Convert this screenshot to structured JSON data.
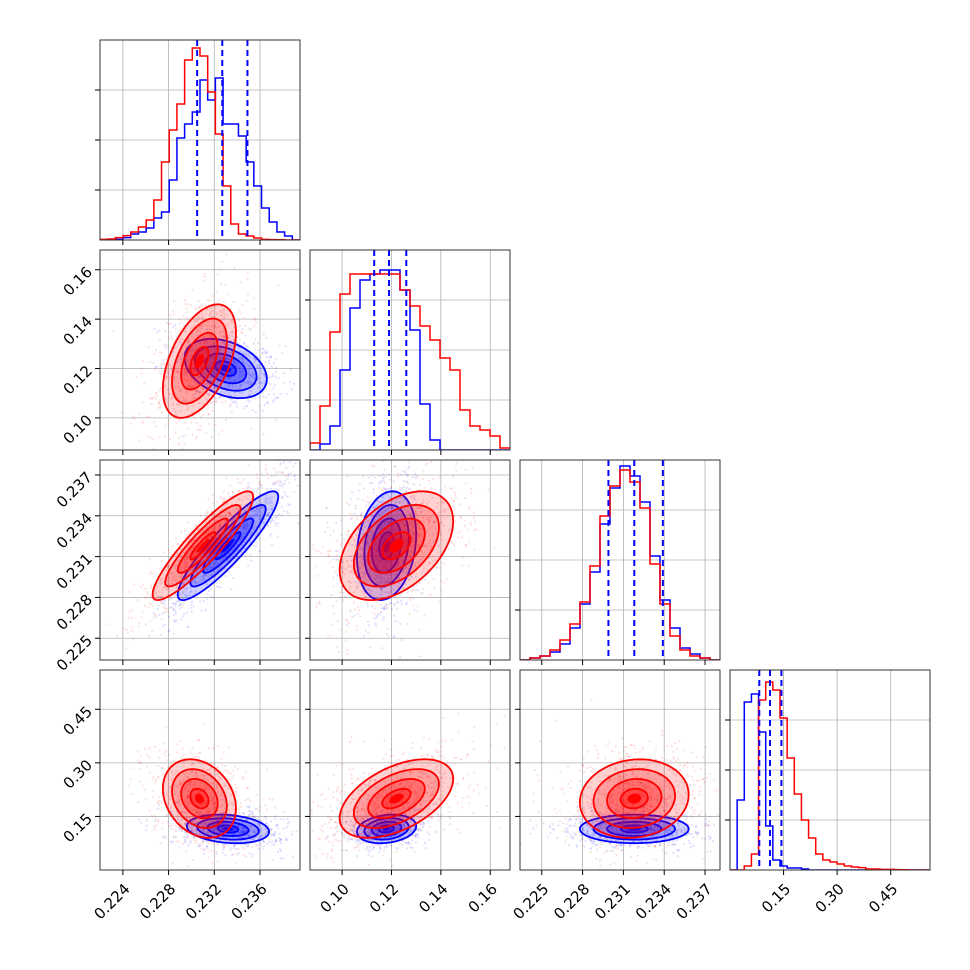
{
  "chart_data": {
    "type": "corner",
    "colors": {
      "red": "#ff0000",
      "blue": "#0000ff"
    },
    "parameters": [
      {
        "range": [
          0.222,
          0.2395
        ],
        "ticks": [
          0.224,
          0.228,
          0.232,
          0.236
        ],
        "tick_labels": [
          "0.224",
          "0.228",
          "0.232",
          "0.236"
        ]
      },
      {
        "range": [
          0.087,
          0.168
        ],
        "ticks": [
          0.1,
          0.12,
          0.14,
          0.16
        ],
        "tick_labels": [
          "0.10",
          "0.12",
          "0.14",
          "0.16"
        ]
      },
      {
        "range": [
          0.2234,
          0.2381
        ],
        "ticks": [
          0.225,
          0.228,
          0.231,
          0.234,
          0.237
        ],
        "tick_labels": [
          "0.225",
          "0.228",
          "0.231",
          "0.234",
          "0.237"
        ]
      },
      {
        "range": [
          0.0,
          0.56
        ],
        "ticks": [
          0.15,
          0.3,
          0.45
        ],
        "tick_labels": [
          "0.15",
          "0.30",
          "0.45"
        ]
      }
    ],
    "quantiles_blue": [
      [
        0.2305,
        0.2327,
        0.2349
      ],
      [
        0.113,
        0.119,
        0.126
      ],
      [
        0.2299,
        0.2318,
        0.2339
      ],
      [
        0.082,
        0.112,
        0.144
      ]
    ],
    "histograms": [
      {
        "bins": [
          0.222,
          0.2395,
          26
        ],
        "red": [
          0.003,
          0.005,
          0.012,
          0.022,
          0.04,
          0.065,
          0.1,
          0.2,
          0.39,
          0.55,
          0.68,
          0.9,
          0.96,
          0.92,
          0.74,
          0.53,
          0.27,
          0.08,
          0.03,
          0.02,
          0.01,
          0.003,
          0.002,
          0.001,
          0.0,
          0.0
        ],
        "blue": [
          0.0,
          0.0,
          0.003,
          0.012,
          0.03,
          0.04,
          0.06,
          0.11,
          0.14,
          0.3,
          0.51,
          0.58,
          0.64,
          0.8,
          0.7,
          0.81,
          0.58,
          0.58,
          0.52,
          0.39,
          0.27,
          0.16,
          0.09,
          0.04,
          0.02,
          0.0
        ]
      },
      {
        "bins": [
          0.087,
          0.168,
          20
        ],
        "red": [
          0.035,
          0.22,
          0.59,
          0.78,
          0.88,
          0.88,
          0.88,
          0.88,
          0.88,
          0.8,
          0.72,
          0.62,
          0.55,
          0.46,
          0.4,
          0.2,
          0.12,
          0.1,
          0.07,
          0.01
        ],
        "blue": [
          0.0,
          0.03,
          0.12,
          0.4,
          0.71,
          0.85,
          0.88,
          0.9,
          0.9,
          0.8,
          0.6,
          0.23,
          0.05,
          0.0,
          0.0,
          0.0,
          0.0,
          0.0,
          0.0,
          0.0
        ]
      },
      {
        "bins": [
          0.2234,
          0.2381,
          20
        ],
        "red": [
          0.0,
          0.01,
          0.02,
          0.05,
          0.1,
          0.18,
          0.29,
          0.47,
          0.72,
          0.87,
          0.95,
          0.89,
          0.76,
          0.48,
          0.28,
          0.12,
          0.05,
          0.02,
          0.01,
          0.0
        ],
        "blue": [
          0.0,
          0.01,
          0.02,
          0.04,
          0.08,
          0.16,
          0.28,
          0.44,
          0.68,
          0.86,
          0.97,
          0.92,
          0.79,
          0.52,
          0.3,
          0.16,
          0.06,
          0.03,
          0.01,
          0.0
        ]
      },
      {
        "bins": [
          0.0,
          0.56,
          28
        ],
        "red": [
          0.0,
          0.0,
          0.02,
          0.08,
          0.85,
          0.94,
          0.9,
          0.76,
          0.56,
          0.38,
          0.25,
          0.16,
          0.08,
          0.05,
          0.04,
          0.03,
          0.02,
          0.015,
          0.012,
          0.005,
          0.005,
          0.003,
          0.003,
          0.002,
          0.001,
          0.0,
          0.0,
          0.0
        ],
        "blue": [
          0.0,
          0.35,
          0.84,
          0.88,
          0.69,
          0.22,
          0.05,
          0.02,
          0.01,
          0.01,
          0.005,
          0.0,
          0.0,
          0.0,
          0.0,
          0.0,
          0.0,
          0.0,
          0.0,
          0.0,
          0.0,
          0.0,
          0.0,
          0.0,
          0.0,
          0.0,
          0.0,
          0.0
        ]
      }
    ],
    "pairs": [
      {
        "row": 1,
        "col": 0,
        "red": {
          "mean": [
            0.2307,
            0.123
          ],
          "sd": [
            0.0016,
            0.0115
          ],
          "rho": 0.5
        },
        "blue": {
          "mean": [
            0.233,
            0.12
          ],
          "sd": [
            0.0018,
            0.006
          ],
          "rho": -0.35
        }
      },
      {
        "row": 2,
        "col": 0,
        "red": {
          "mean": [
            0.231,
            0.2318
          ],
          "sd": [
            0.0022,
            0.002
          ],
          "rho": 0.9
        },
        "blue": {
          "mean": [
            0.2332,
            0.2318
          ],
          "sd": [
            0.0022,
            0.002
          ],
          "rho": 0.9
        }
      },
      {
        "row": 2,
        "col": 1,
        "red": {
          "mean": [
            0.122,
            0.2318
          ],
          "sd": [
            0.0115,
            0.002
          ],
          "rho": 0.45
        },
        "blue": {
          "mean": [
            0.118,
            0.2318
          ],
          "sd": [
            0.006,
            0.002
          ],
          "rho": 0.2
        }
      },
      {
        "row": 3,
        "col": 0,
        "red": {
          "mean": [
            0.2307,
            0.2
          ],
          "sd": [
            0.0016,
            0.055
          ],
          "rho": -0.25
        },
        "blue": {
          "mean": [
            0.2332,
            0.115
          ],
          "sd": [
            0.0018,
            0.02
          ],
          "rho": -0.2
        }
      },
      {
        "row": 3,
        "col": 1,
        "red": {
          "mean": [
            0.122,
            0.2
          ],
          "sd": [
            0.0115,
            0.055
          ],
          "rho": 0.5
        },
        "blue": {
          "mean": [
            0.118,
            0.115
          ],
          "sd": [
            0.006,
            0.02
          ],
          "rho": 0.2
        }
      },
      {
        "row": 3,
        "col": 2,
        "red": {
          "mean": [
            0.2318,
            0.2
          ],
          "sd": [
            0.002,
            0.055
          ],
          "rho": 0.1
        },
        "blue": {
          "mean": [
            0.2318,
            0.115
          ],
          "sd": [
            0.002,
            0.02
          ],
          "rho": 0.0
        }
      }
    ],
    "contour_levels_sigma": [
      0.5,
      1.0,
      1.5,
      2.0
    ],
    "grid": true
  }
}
